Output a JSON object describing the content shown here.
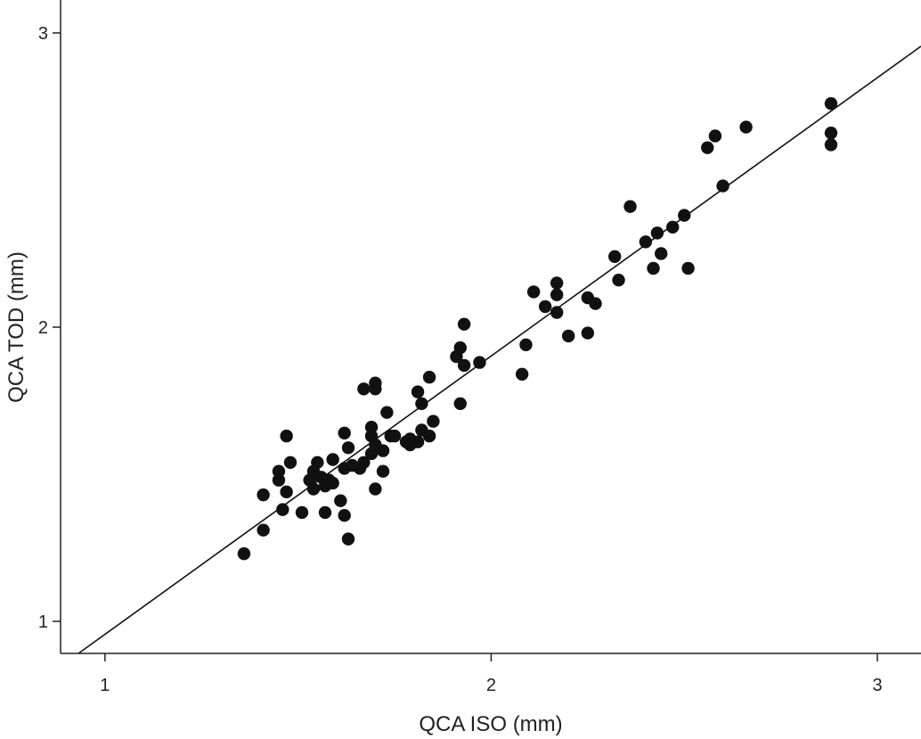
{
  "chart_data": {
    "type": "scatter",
    "title": "",
    "xlabel": "QCA ISO (mm)",
    "ylabel": "QCA TOD (mm)",
    "xlim": [
      0.885,
      3.113
    ],
    "ylim": [
      0.891,
      3.112
    ],
    "xticks": [
      {
        "value": 1,
        "label": "1"
      },
      {
        "value": 2,
        "label": "2"
      },
      {
        "value": 3,
        "label": "3"
      }
    ],
    "yticks": [
      {
        "value": 1,
        "label": "1"
      },
      {
        "value": 2,
        "label": "2"
      },
      {
        "value": 3,
        "label": "3"
      }
    ],
    "grid": false,
    "point_color": "#111111",
    "regression_line": {
      "slope": 0.946,
      "intercept": 0.01
    },
    "points": [
      [
        1.36,
        1.23
      ],
      [
        1.41,
        1.31
      ],
      [
        1.41,
        1.43
      ],
      [
        1.46,
        1.38
      ],
      [
        1.47,
        1.44
      ],
      [
        1.45,
        1.51
      ],
      [
        1.45,
        1.48
      ],
      [
        1.47,
        1.63
      ],
      [
        1.48,
        1.54
      ],
      [
        1.51,
        1.37
      ],
      [
        1.53,
        1.48
      ],
      [
        1.54,
        1.51
      ],
      [
        1.54,
        1.45
      ],
      [
        1.55,
        1.54
      ],
      [
        1.56,
        1.49
      ],
      [
        1.57,
        1.46
      ],
      [
        1.58,
        1.48
      ],
      [
        1.59,
        1.47
      ],
      [
        1.59,
        1.55
      ],
      [
        1.57,
        1.37
      ],
      [
        1.61,
        1.41
      ],
      [
        1.62,
        1.36
      ],
      [
        1.63,
        1.28
      ],
      [
        1.62,
        1.64
      ],
      [
        1.63,
        1.59
      ],
      [
        1.62,
        1.52
      ],
      [
        1.64,
        1.53
      ],
      [
        1.66,
        1.52
      ],
      [
        1.67,
        1.54
      ],
      [
        1.69,
        1.57
      ],
      [
        1.69,
        1.63
      ],
      [
        1.69,
        1.66
      ],
      [
        1.7,
        1.45
      ],
      [
        1.7,
        1.6
      ],
      [
        1.67,
        1.79
      ],
      [
        1.7,
        1.79
      ],
      [
        1.7,
        1.81
      ],
      [
        1.72,
        1.51
      ],
      [
        1.72,
        1.58
      ],
      [
        1.73,
        1.71
      ],
      [
        1.74,
        1.63
      ],
      [
        1.75,
        1.63
      ],
      [
        1.78,
        1.61
      ],
      [
        1.79,
        1.6
      ],
      [
        1.81,
        1.78
      ],
      [
        1.82,
        1.74
      ],
      [
        1.82,
        1.65
      ],
      [
        1.84,
        1.63
      ],
      [
        1.84,
        1.83
      ],
      [
        1.85,
        1.68
      ],
      [
        1.81,
        1.61
      ],
      [
        1.79,
        1.62
      ],
      [
        1.92,
        1.74
      ],
      [
        1.91,
        1.9
      ],
      [
        1.92,
        1.93
      ],
      [
        1.93,
        2.01
      ],
      [
        1.93,
        1.87
      ],
      [
        1.97,
        1.88
      ],
      [
        2.08,
        1.84
      ],
      [
        2.09,
        1.94
      ],
      [
        2.11,
        2.12
      ],
      [
        2.14,
        2.07
      ],
      [
        2.17,
        2.05
      ],
      [
        2.17,
        2.15
      ],
      [
        2.17,
        2.11
      ],
      [
        2.2,
        1.97
      ],
      [
        2.25,
        2.1
      ],
      [
        2.25,
        1.98
      ],
      [
        2.27,
        2.08
      ],
      [
        2.32,
        2.24
      ],
      [
        2.33,
        2.16
      ],
      [
        2.36,
        2.41
      ],
      [
        2.4,
        2.29
      ],
      [
        2.42,
        2.2
      ],
      [
        2.43,
        2.32
      ],
      [
        2.44,
        2.25
      ],
      [
        2.47,
        2.34
      ],
      [
        2.5,
        2.38
      ],
      [
        2.51,
        2.2
      ],
      [
        2.56,
        2.61
      ],
      [
        2.58,
        2.65
      ],
      [
        2.6,
        2.48
      ],
      [
        2.66,
        2.68
      ],
      [
        2.88,
        2.76
      ],
      [
        2.88,
        2.66
      ],
      [
        2.88,
        2.62
      ]
    ]
  }
}
